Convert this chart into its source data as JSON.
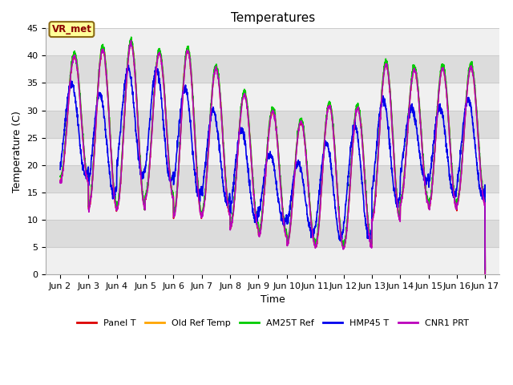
{
  "title": "Temperatures",
  "xlabel": "Time",
  "ylabel": "Temperature (C)",
  "ylim": [
    0,
    45
  ],
  "annotation_text": "VR_met",
  "annotation_color": "#8B0000",
  "annotation_bg": "#FFFF99",
  "annotation_edge": "#8B6914",
  "grid_color": "#CCCCCC",
  "plot_bg_light": "#F0F0F0",
  "plot_bg_dark": "#DCDCDC",
  "series": [
    {
      "name": "Panel T",
      "color": "#DD0000"
    },
    {
      "name": "Old Ref Temp",
      "color": "#FFA500"
    },
    {
      "name": "AM25T Ref",
      "color": "#00CC00"
    },
    {
      "name": "HMP45 T",
      "color": "#0000EE"
    },
    {
      "name": "CNR1 PRT",
      "color": "#BB00BB"
    }
  ],
  "tick_labels": [
    "Jun 2",
    "Jun 3",
    "Jun 4",
    "Jun 5",
    "Jun 6",
    "Jun 7",
    "Jun 8",
    "Jun 9",
    "Jun 10",
    "Jun 11",
    "Jun 12",
    "Jun 13",
    "Jun 14",
    "Jun 15",
    "Jun 16",
    "Jun 17"
  ],
  "tick_positions": [
    0,
    1,
    2,
    3,
    4,
    5,
    6,
    7,
    8,
    9,
    10,
    11,
    12,
    13,
    14,
    15
  ],
  "yticks": [
    0,
    5,
    10,
    15,
    20,
    25,
    30,
    35,
    40,
    45
  ],
  "daily_peaks": [
    40.0,
    41.2,
    42.3,
    40.5,
    41.0,
    37.7,
    33.0,
    29.9,
    28.0,
    31.0,
    30.5,
    38.5,
    37.5,
    37.7,
    38.0
  ],
  "daily_mins": [
    17.0,
    12.0,
    12.0,
    14.0,
    10.5,
    11.0,
    8.5,
    7.0,
    5.5,
    5.0,
    5.0,
    10.0,
    13.0,
    12.0,
    13.0
  ],
  "hmp45_peaks": [
    35.0,
    33.0,
    37.5,
    37.5,
    34.0,
    30.0,
    26.5,
    22.0,
    20.5,
    24.0,
    27.0,
    32.0,
    30.5,
    30.5,
    32.0
  ],
  "hmp45_mins": [
    18.0,
    14.5,
    18.0,
    17.0,
    14.5,
    13.0,
    10.0,
    9.5,
    7.5,
    6.5,
    7.0,
    13.0,
    17.0,
    14.5,
    14.5
  ],
  "figsize": [
    6.4,
    4.8
  ],
  "dpi": 100
}
